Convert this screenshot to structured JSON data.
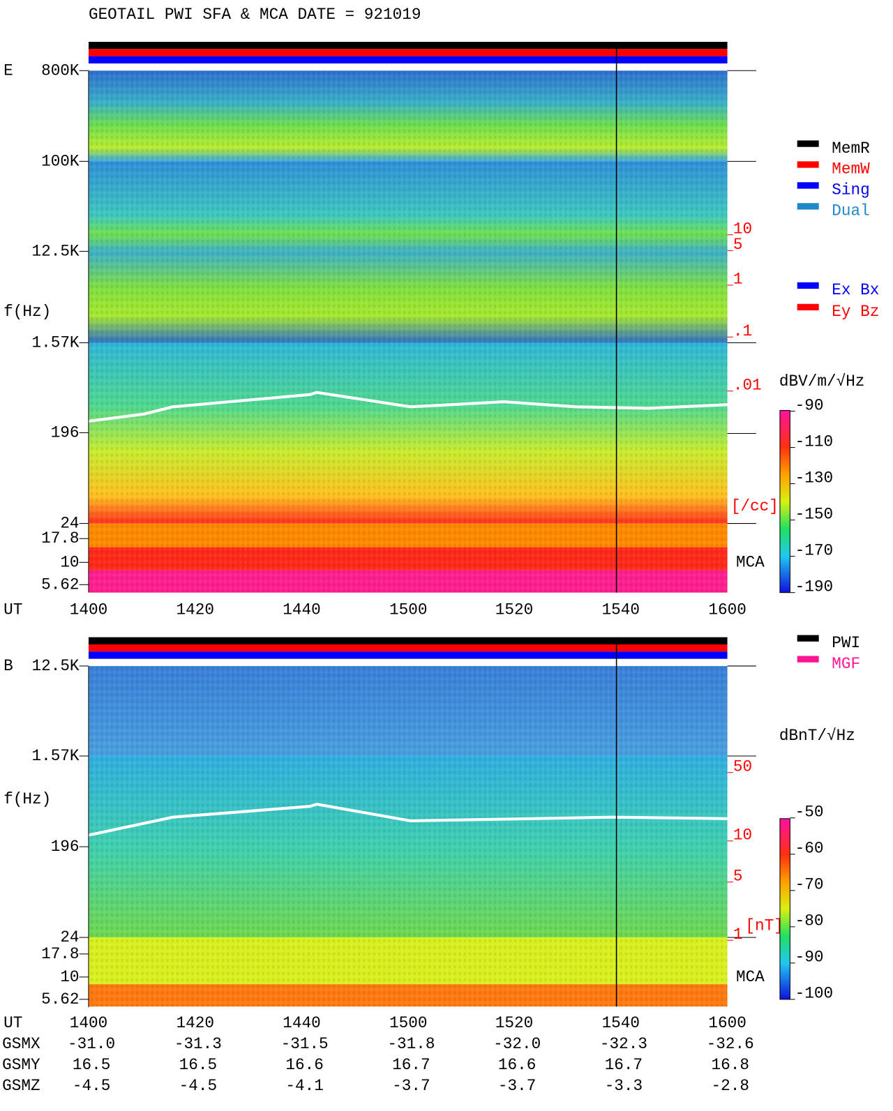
{
  "title": "GEOTAIL   PWI SFA & MCA   DATE = 921019",
  "panels": [
    {
      "label": "E",
      "y_label": "f(Hz)",
      "freq_ticks": [
        "800K",
        "100K",
        "12.5K",
        "1.57K",
        "196",
        "24",
        "17.8",
        "10",
        "5.62"
      ],
      "time_label": "UT",
      "time_ticks": [
        "1400",
        "1420",
        "1440",
        "1500",
        "1520",
        "1540",
        "1600"
      ],
      "density_ticks": [
        "10",
        "5",
        "1",
        ".1",
        ".01"
      ],
      "density_unit": "[/cc]",
      "mca": "MCA",
      "colorbar_unit": "dBV/m/√Hz",
      "colorbar_ticks": [
        -90,
        -110,
        -130,
        -150,
        -170,
        -190
      ]
    },
    {
      "label": "B",
      "y_label": "f(Hz)",
      "freq_ticks": [
        "12.5K",
        "1.57K",
        "196",
        "24",
        "17.8",
        "10",
        "5.62"
      ],
      "time_label": "UT",
      "time_ticks": [
        "1400",
        "1420",
        "1440",
        "1500",
        "1520",
        "1540",
        "1600"
      ],
      "density_ticks": [
        "50",
        "10",
        "5",
        "1"
      ],
      "density_unit": "[nT]",
      "mca": "MCA",
      "colorbar_unit": "dBnT/√Hz",
      "colorbar_ticks": [
        -50,
        -60,
        -70,
        -80,
        -90,
        -100
      ]
    }
  ],
  "legend_mode": [
    {
      "label": "MemR",
      "color": "#000000"
    },
    {
      "label": "MemW",
      "color": "#ff0000"
    },
    {
      "label": "Sing",
      "color": "#0000ff"
    },
    {
      "label": "Dual",
      "color": "#1e88c8"
    }
  ],
  "legend_component": [
    {
      "label": "Ex Bx",
      "color": "#0000ff"
    },
    {
      "label": "Ey Bz",
      "color": "#ff0000"
    }
  ],
  "legend_source": [
    {
      "label": "PWI",
      "color": "#000000"
    },
    {
      "label": "MGF",
      "color": "#ff1493"
    }
  ],
  "orbit": [
    {
      "name": "GSMX",
      "values": [
        "-31.0",
        "-31.3",
        "-31.5",
        "-31.8",
        "-32.0",
        "-32.3",
        "-32.6"
      ]
    },
    {
      "name": "GSMY",
      "values": [
        "16.5",
        "16.5",
        "16.6",
        "16.7",
        "16.6",
        "16.7",
        "16.8"
      ]
    },
    {
      "name": "GSMZ",
      "values": [
        "-4.5",
        "-4.5",
        "-4.1",
        "-3.7",
        "-3.7",
        "-3.3",
        "-2.8"
      ]
    }
  ]
}
